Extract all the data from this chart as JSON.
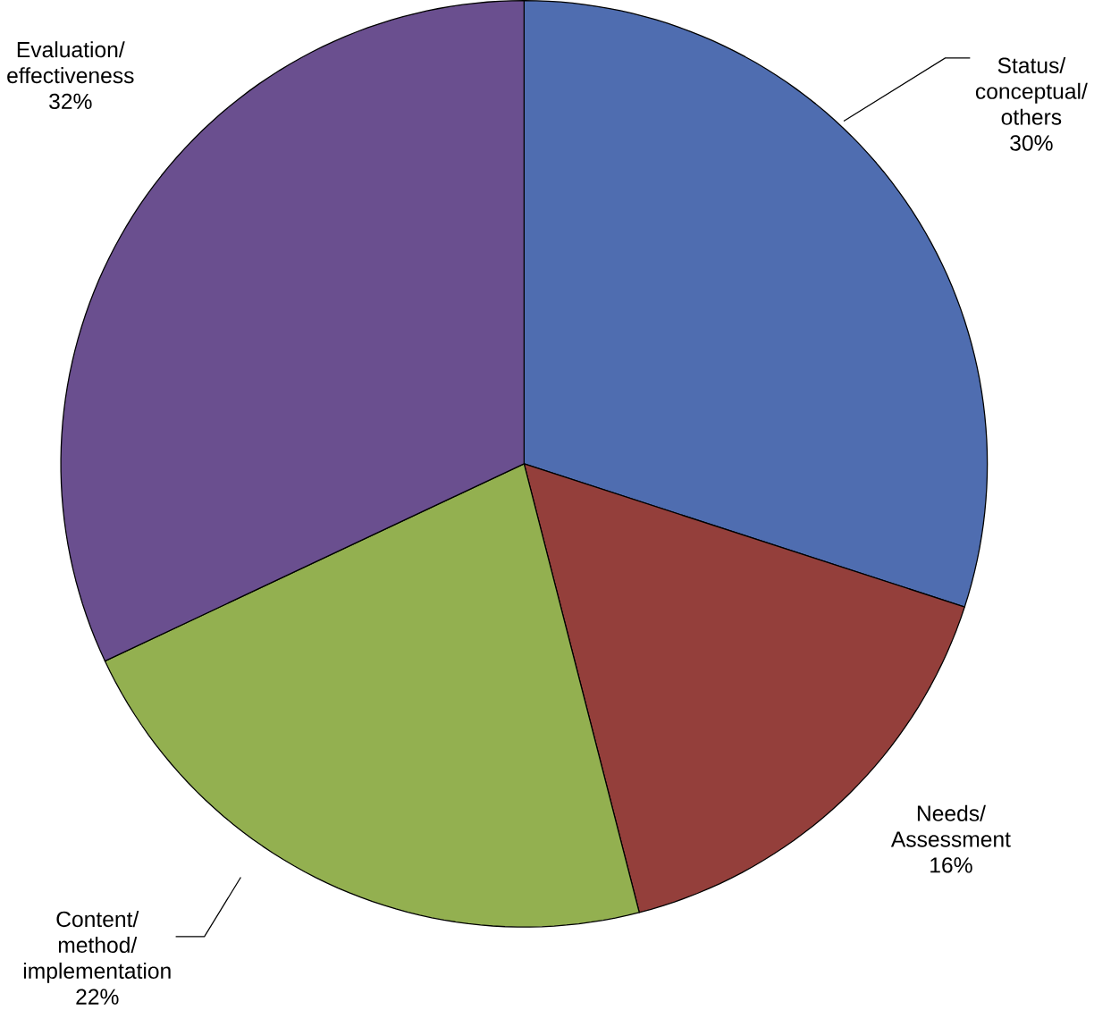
{
  "chart_data": {
    "type": "pie",
    "categories": [
      "Status/ conceptual/ others",
      "Needs/ Assessment",
      "Content/ method/ implementation",
      "Evaluation/ effectiveness"
    ],
    "values": [
      30,
      16,
      22,
      32
    ],
    "value_labels": [
      "30%",
      "16%",
      "22%",
      "32%"
    ],
    "colors": [
      "#4f6db0",
      "#943f3b",
      "#93b050",
      "#6a4f8f"
    ]
  }
}
